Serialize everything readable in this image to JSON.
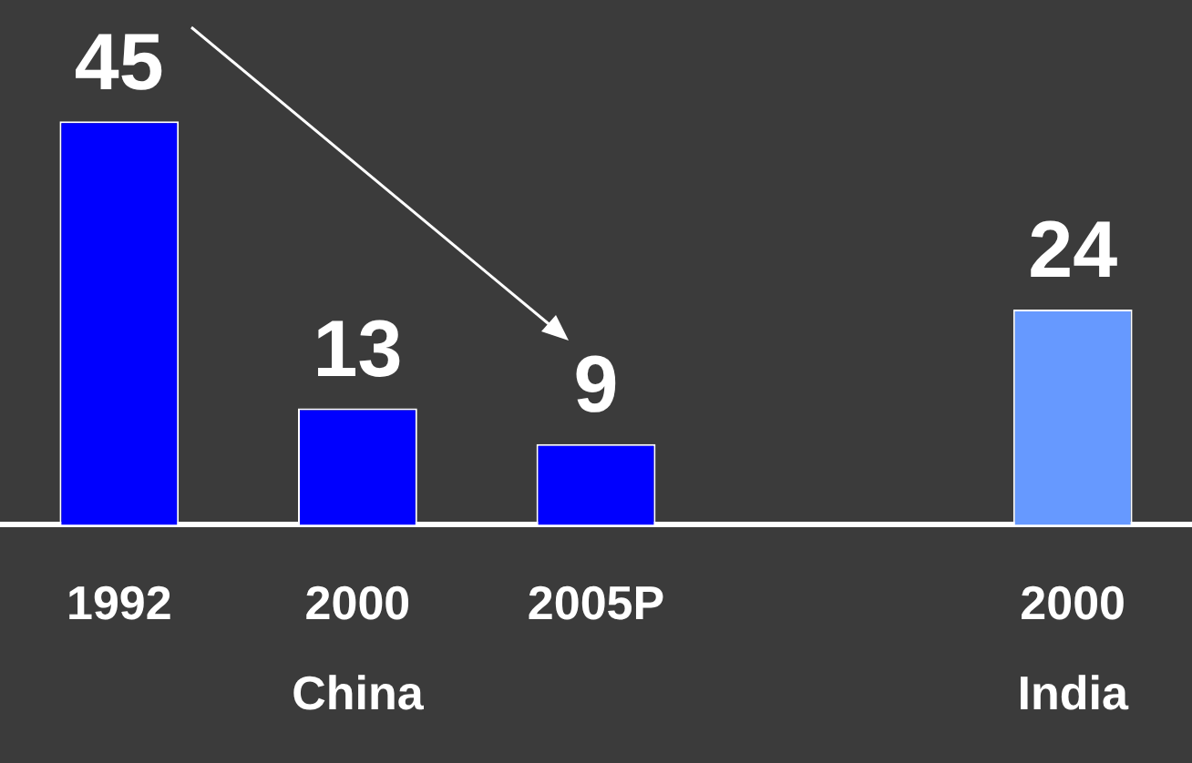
{
  "chart_data": {
    "type": "bar",
    "categories": [
      "1992",
      "2000\nChina",
      "2005P",
      null,
      "2000\nIndia"
    ],
    "values": [
      45,
      13,
      9,
      null,
      24
    ],
    "colors": [
      "#0000ff",
      "#0000ff",
      "#0000ff",
      null,
      "#6699ff"
    ],
    "data_labels": true,
    "grid": false,
    "legend": false,
    "tick_labels": "x"
  }
}
